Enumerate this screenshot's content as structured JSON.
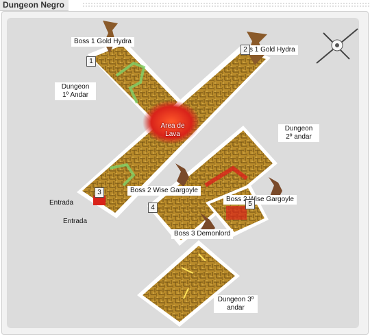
{
  "header": {
    "title": "Dungeon Negro"
  },
  "labels": {
    "boss1_hydra_a": "Boss 1 Gold Hydra",
    "boss1_hydra_b": "s 1 Gold Hydra",
    "dungeon_1": "Dungeon 1º Andar",
    "lava": "Area de Lava",
    "dungeon_2": "Dungeon 2º andar",
    "boss2_gargoyle_a": "Boss 2 Wise Gargoyle",
    "boss2_gargoyle_b": "Boss 2 Wise Gargoyle",
    "entrada_a": "Entrada",
    "entrada_b": "Entrada",
    "boss3_demonlord": "Boss 3 Demonlord",
    "dungeon_3": "Dungeon 3º andar"
  },
  "markers": {
    "m1": "1",
    "m2": "2",
    "m3": "3",
    "m4": "4",
    "m5": "5"
  },
  "colors": {
    "floor": "#b88a2a",
    "lava": "#d9231a",
    "corridor": "#7fd26a",
    "outline": "#ffffff"
  }
}
